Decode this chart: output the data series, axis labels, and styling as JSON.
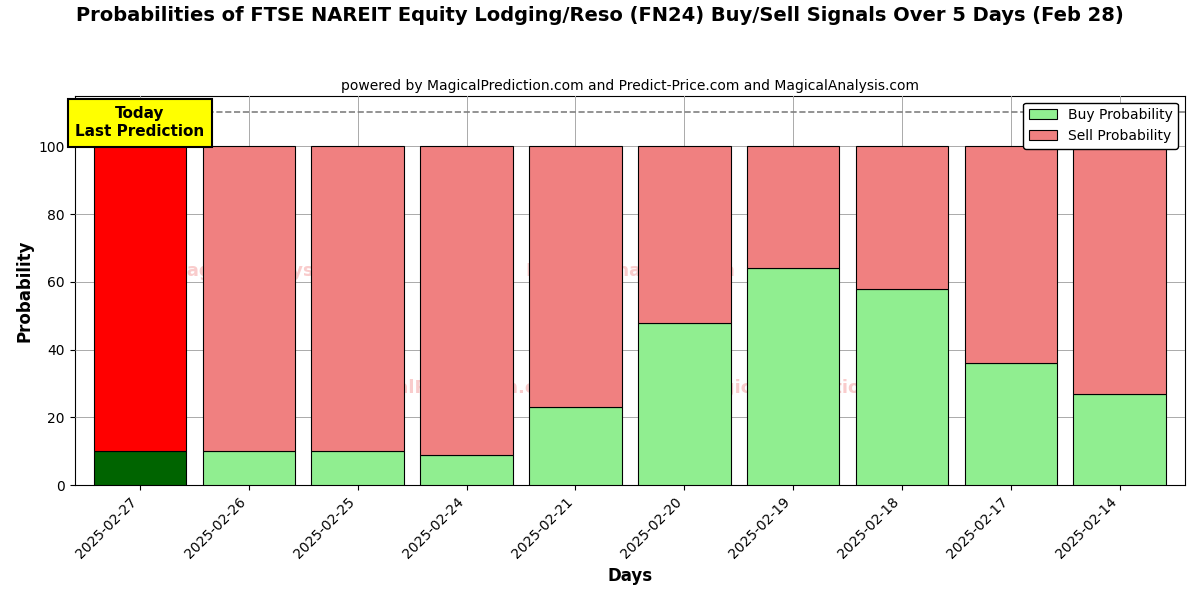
{
  "title": "Probabilities of FTSE NAREIT Equity Lodging/Reso (FN24) Buy/Sell Signals Over 5 Days (Feb 28)",
  "subtitle": "powered by MagicalPrediction.com and Predict-Price.com and MagicalAnalysis.com",
  "xlabel": "Days",
  "ylabel": "Probability",
  "categories": [
    "2025-02-27",
    "2025-02-26",
    "2025-02-25",
    "2025-02-24",
    "2025-02-21",
    "2025-02-20",
    "2025-02-19",
    "2025-02-18",
    "2025-02-17",
    "2025-02-14"
  ],
  "buy_values": [
    10,
    10,
    10,
    9,
    23,
    48,
    64,
    58,
    36,
    27
  ],
  "sell_values": [
    90,
    90,
    90,
    91,
    77,
    52,
    36,
    42,
    64,
    73
  ],
  "buy_colors": [
    "#006400",
    "#90EE90",
    "#90EE90",
    "#90EE90",
    "#90EE90",
    "#90EE90",
    "#90EE90",
    "#90EE90",
    "#90EE90",
    "#90EE90"
  ],
  "sell_colors": [
    "#FF0000",
    "#F08080",
    "#F08080",
    "#F08080",
    "#F08080",
    "#F08080",
    "#F08080",
    "#F08080",
    "#F08080",
    "#F08080"
  ],
  "today_label": "Today\nLast Prediction",
  "today_bg": "#FFFF00",
  "legend_buy_color": "#90EE90",
  "legend_sell_color": "#F08080",
  "ylim": [
    0,
    115
  ],
  "dashed_line_y": 110,
  "bar_width": 0.85,
  "background_color": "#FFFFFF",
  "grid_color": "#AAAAAA",
  "title_fontsize": 14,
  "subtitle_fontsize": 10,
  "axis_label_fontsize": 12
}
